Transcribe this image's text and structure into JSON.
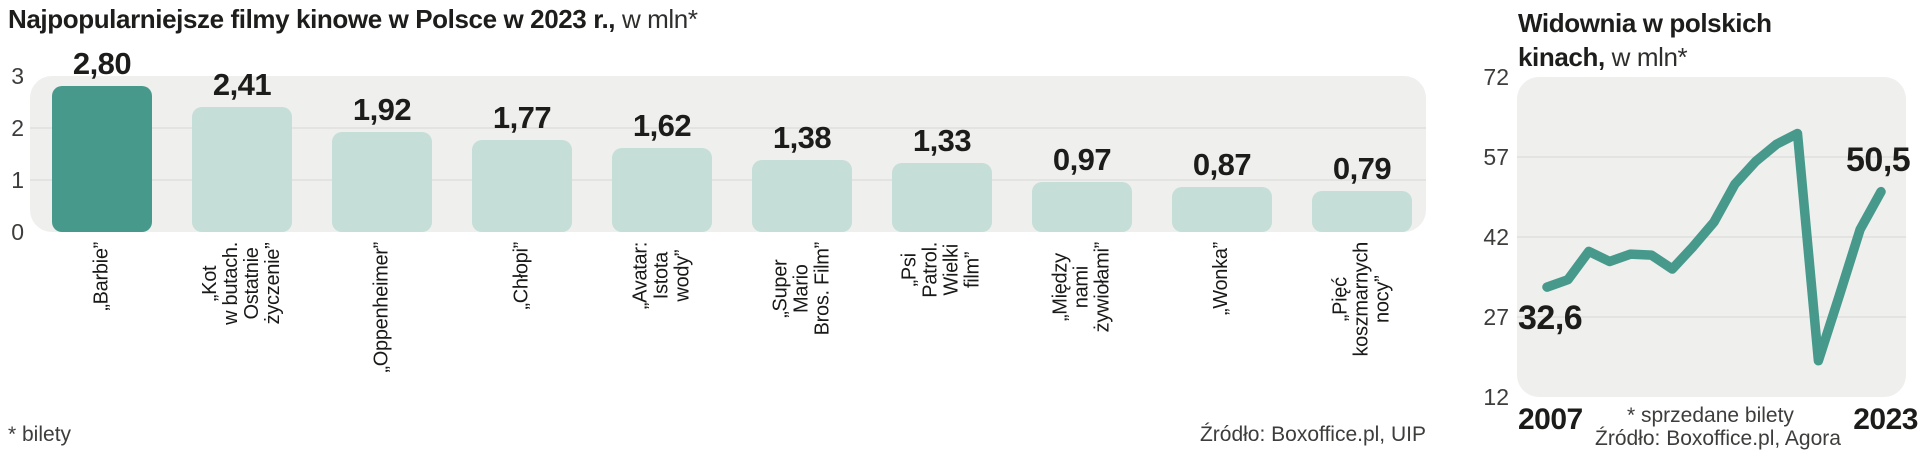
{
  "colors": {
    "accent_teal": "#479a8b",
    "bar_light": "#c5ded7",
    "plot_background": "#efefed",
    "grid_line": "#e3e3e1",
    "text_dark": "#1c1c1a",
    "text_muted": "#3d3d3b"
  },
  "chart_data": [
    {
      "type": "bar",
      "title_bold": "Najpopularniejsze filmy kinowe w Polsce w 2023 r.,",
      "title_light": " w mln*",
      "footnote": "* bilety",
      "source": "Źródło: Boxoffice.pl, UIP",
      "ylabel": "",
      "ylim": [
        0,
        3
      ],
      "y_ticks": [
        3,
        2,
        1,
        0
      ],
      "categories": [
        "„Barbie”",
        "„Kot w butach. Ostatnie życzenie”",
        "„Oppenheimer”",
        "„Chłopi”",
        "„Avatar: Istota wody”",
        "„Super Mario Bros. Film”",
        "„Psi Patrol. Wielki film”",
        "„Między nami żywiołami”",
        "„Wonka”",
        "„Pięć koszmarnych nocy”"
      ],
      "label_lines": [
        [
          "„Barbie”"
        ],
        [
          "„Kot",
          "w butach.",
          "Ostatnie",
          "życzenie”"
        ],
        [
          "„Oppenheimer”"
        ],
        [
          "„Chłopi”"
        ],
        [
          "„Avatar:",
          "Istota",
          "wody”"
        ],
        [
          "„Super",
          "Mario",
          "Bros. Film”"
        ],
        [
          "„Psi",
          "Patrol.",
          "Wielki",
          "film”"
        ],
        [
          "„Między",
          "nami",
          "żywiołami”"
        ],
        [
          "„Wonka”"
        ],
        [
          "„Pięć",
          "koszmarnych",
          "nocy”"
        ]
      ],
      "values": [
        2.8,
        2.41,
        1.92,
        1.77,
        1.62,
        1.38,
        1.33,
        0.97,
        0.87,
        0.79
      ],
      "value_labels": [
        "2,80",
        "2,41",
        "1,92",
        "1,77",
        "1,62",
        "1,38",
        "1,33",
        "0,97",
        "0,87",
        "0,79"
      ],
      "highlight_index": 0,
      "grid": true,
      "legend": false
    },
    {
      "type": "line",
      "title_bold": "Widownia w polskich kinach,",
      "title_light": " w mln*",
      "footnote": "* sprzedane bilety",
      "source": "Źródło: Boxoffice.pl, Agora",
      "ylim": [
        12,
        72
      ],
      "y_ticks": [
        72,
        57,
        42,
        27,
        12
      ],
      "x": [
        2007,
        2008,
        2009,
        2010,
        2011,
        2012,
        2013,
        2014,
        2015,
        2016,
        2017,
        2018,
        2019,
        2020,
        2021,
        2022,
        2023
      ],
      "values": [
        32.6,
        34.0,
        39.3,
        37.4,
        38.8,
        38.6,
        36.0,
        40.2,
        44.8,
        51.9,
        56.2,
        59.4,
        61.4,
        18.8,
        31.0,
        43.4,
        50.5
      ],
      "x_tick_labels": [
        "2007",
        "2023"
      ],
      "point_labels": {
        "first": "32,6",
        "last": "50,5"
      },
      "grid": true,
      "legend": false
    }
  ]
}
